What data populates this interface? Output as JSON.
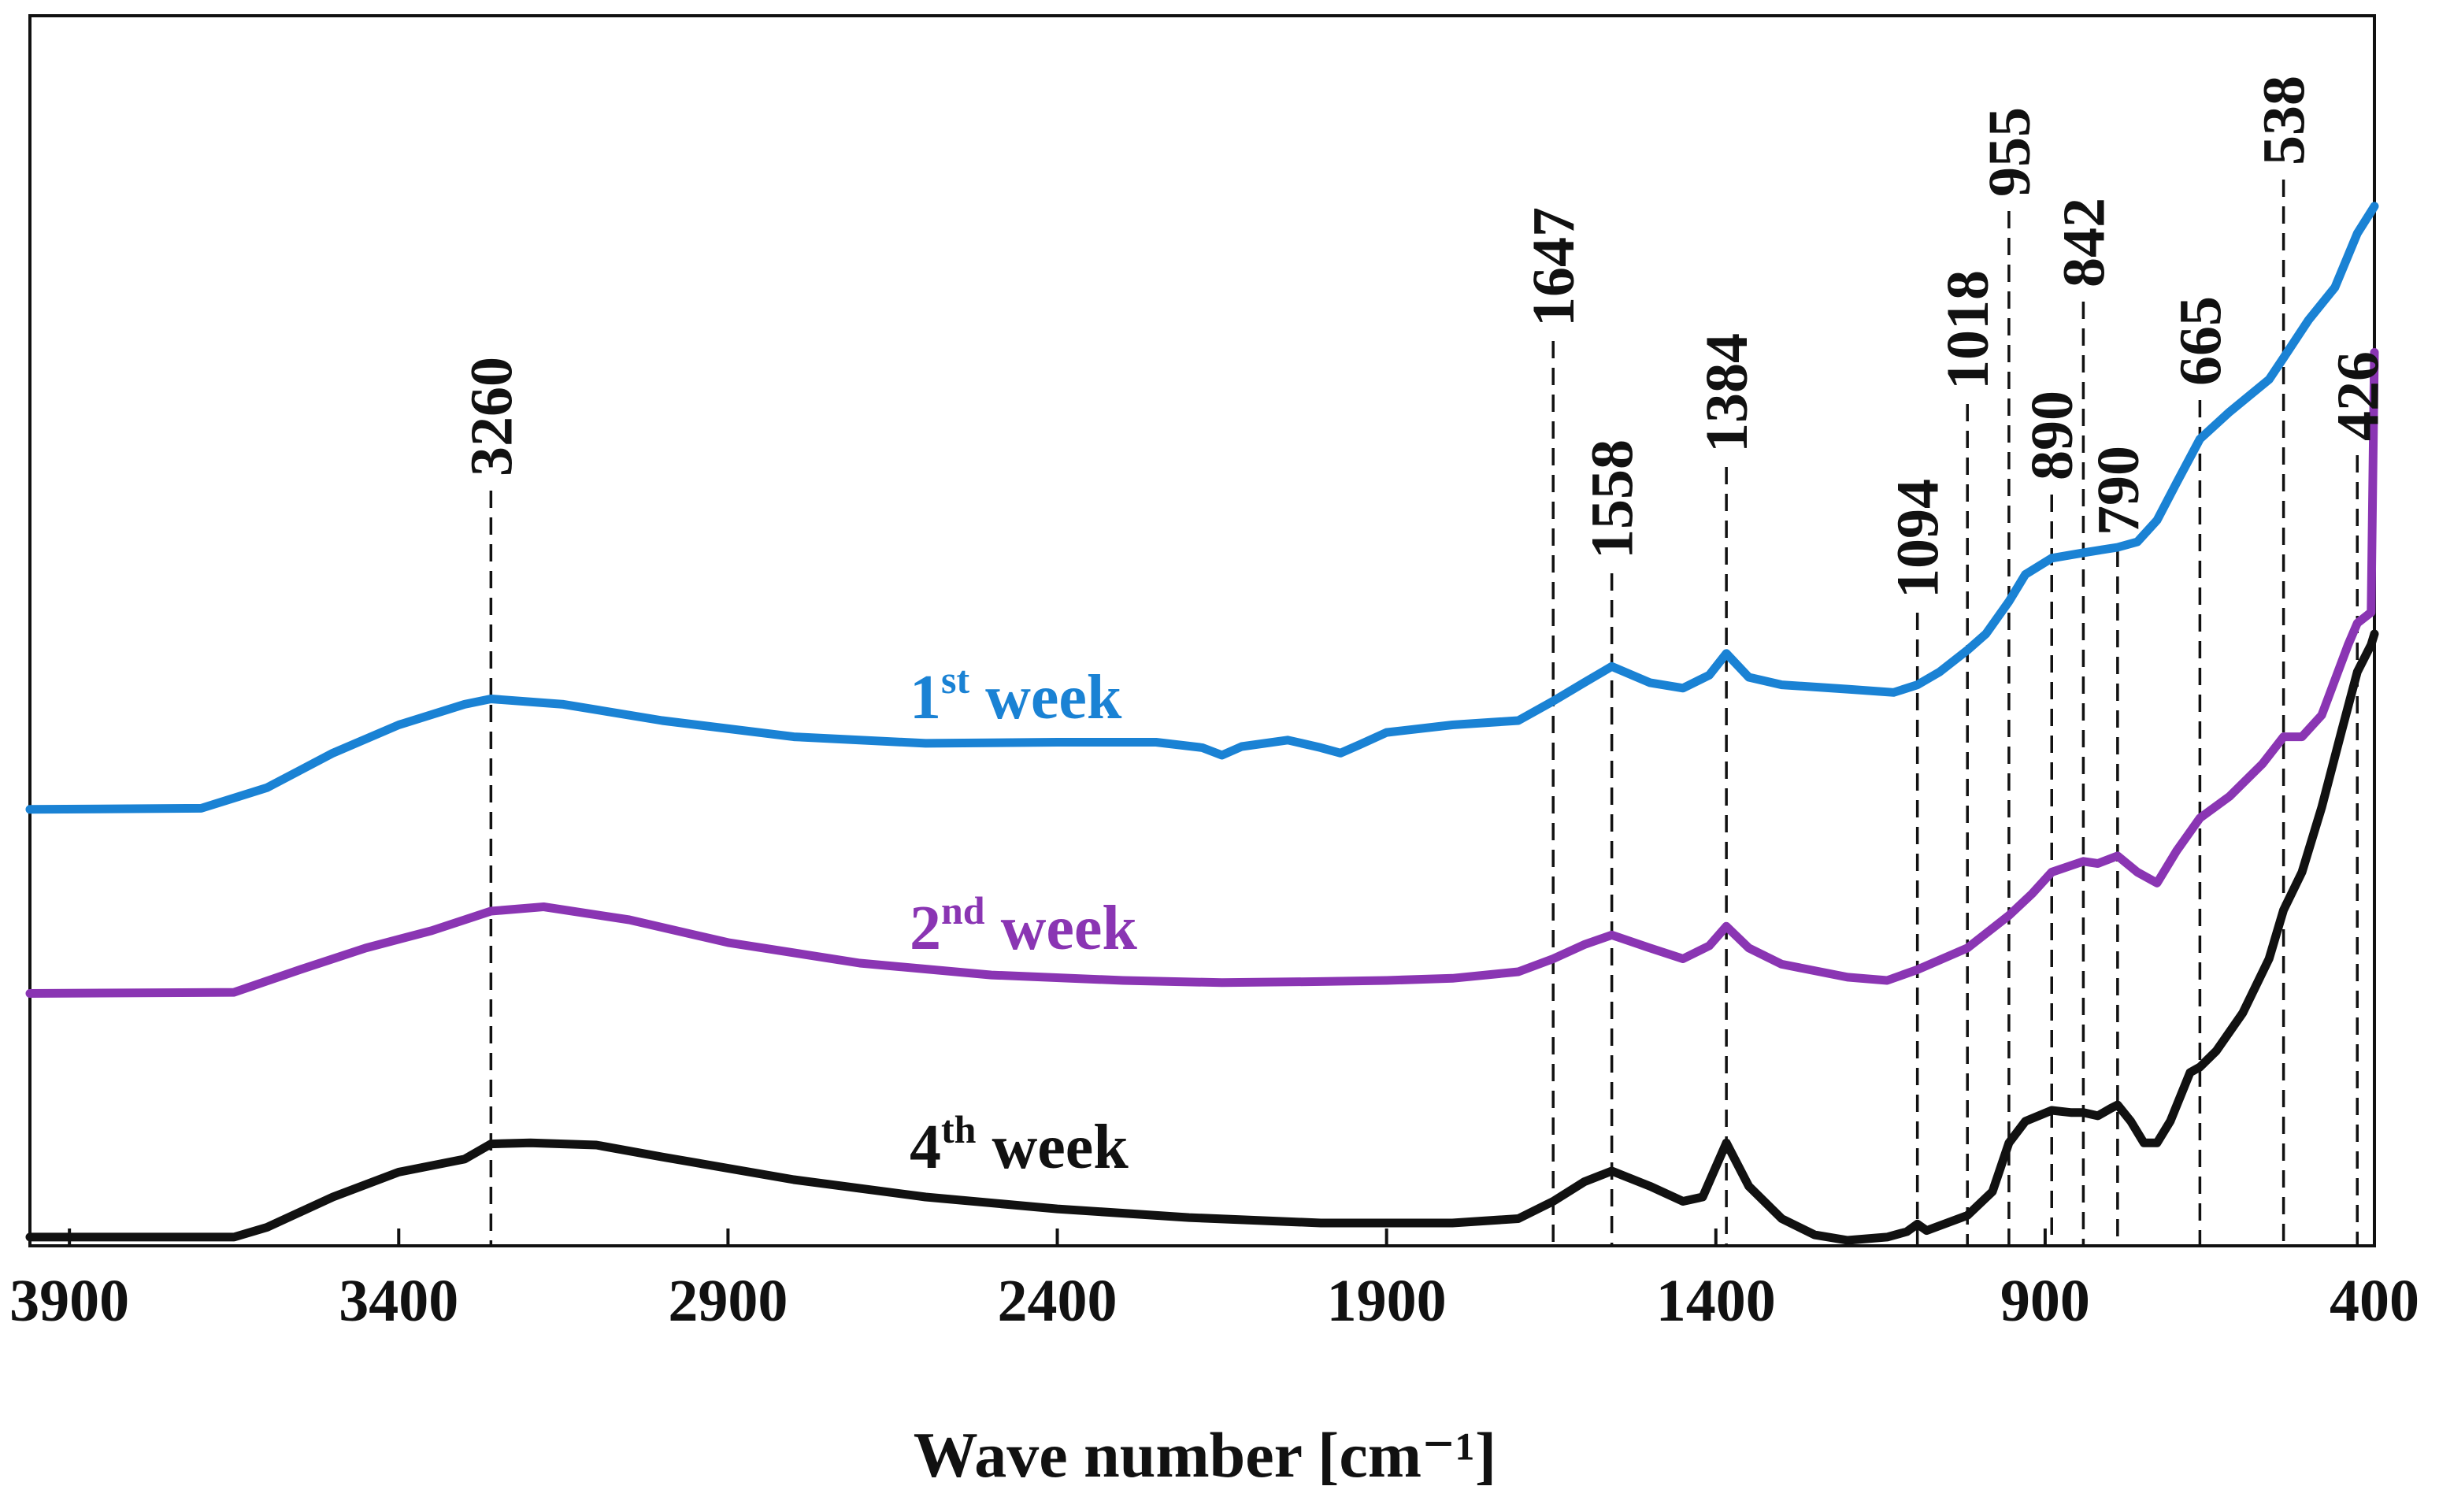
{
  "chart_data": {
    "type": "line",
    "title": "",
    "xlabel": "Wave number [cm⁻¹]",
    "ylabel": "",
    "xlim": [
      3960,
      400
    ],
    "ylim": [
      0,
      100
    ],
    "x_reversed": true,
    "grid": false,
    "xticks": [
      3900,
      3400,
      2900,
      2400,
      1900,
      1400,
      900,
      400
    ],
    "series": [
      {
        "name": "1st week",
        "label_main": "1",
        "label_sup": "st",
        "label_rest": " week",
        "color": "#1a82d4",
        "points": [
          [
            3960,
            39.8
          ],
          [
            3700,
            39.9
          ],
          [
            3600,
            41.8
          ],
          [
            3500,
            45.0
          ],
          [
            3400,
            47.6
          ],
          [
            3300,
            49.5
          ],
          [
            3260,
            50.0
          ],
          [
            3150,
            49.5
          ],
          [
            3000,
            48.0
          ],
          [
            2800,
            46.5
          ],
          [
            2600,
            45.9
          ],
          [
            2400,
            46.0
          ],
          [
            2250,
            46.0
          ],
          [
            2180,
            45.5
          ],
          [
            2150,
            44.8
          ],
          [
            2120,
            45.6
          ],
          [
            2050,
            46.2
          ],
          [
            2000,
            45.5
          ],
          [
            1970,
            45.0
          ],
          [
            1940,
            45.8
          ],
          [
            1900,
            46.9
          ],
          [
            1800,
            47.6
          ],
          [
            1700,
            48.0
          ],
          [
            1647,
            49.8
          ],
          [
            1600,
            51.5
          ],
          [
            1558,
            53.0
          ],
          [
            1500,
            51.5
          ],
          [
            1450,
            51.0
          ],
          [
            1410,
            52.2
          ],
          [
            1384,
            54.2
          ],
          [
            1350,
            52.0
          ],
          [
            1300,
            51.3
          ],
          [
            1200,
            50.9
          ],
          [
            1130,
            50.6
          ],
          [
            1094,
            51.3
          ],
          [
            1060,
            52.5
          ],
          [
            1018,
            54.5
          ],
          [
            990,
            56.0
          ],
          [
            955,
            59.0
          ],
          [
            930,
            61.5
          ],
          [
            890,
            63.0
          ],
          [
            842,
            63.5
          ],
          [
            790,
            64.0
          ],
          [
            760,
            64.5
          ],
          [
            730,
            66.5
          ],
          [
            700,
            70.0
          ],
          [
            665,
            74.0
          ],
          [
            620,
            76.5
          ],
          [
            560,
            79.5
          ],
          [
            538,
            81.5
          ],
          [
            500,
            85.0
          ],
          [
            460,
            88.0
          ],
          [
            426,
            93.0
          ],
          [
            400,
            95.5
          ]
        ]
      },
      {
        "name": "2nd week",
        "label_main": "2",
        "label_sup": "nd",
        "label_rest": " week",
        "color": "#8a35b3",
        "points": [
          [
            3960,
            22.8
          ],
          [
            3650,
            22.9
          ],
          [
            3550,
            25.0
          ],
          [
            3450,
            27.0
          ],
          [
            3350,
            28.6
          ],
          [
            3260,
            30.4
          ],
          [
            3180,
            30.8
          ],
          [
            3050,
            29.6
          ],
          [
            2900,
            27.5
          ],
          [
            2700,
            25.6
          ],
          [
            2500,
            24.5
          ],
          [
            2300,
            24.0
          ],
          [
            2150,
            23.8
          ],
          [
            2000,
            23.9
          ],
          [
            1900,
            24.0
          ],
          [
            1800,
            24.2
          ],
          [
            1700,
            24.8
          ],
          [
            1647,
            26.0
          ],
          [
            1600,
            27.3
          ],
          [
            1558,
            28.2
          ],
          [
            1500,
            27.0
          ],
          [
            1450,
            26.0
          ],
          [
            1410,
            27.2
          ],
          [
            1384,
            29.0
          ],
          [
            1350,
            27.0
          ],
          [
            1300,
            25.5
          ],
          [
            1200,
            24.3
          ],
          [
            1140,
            24.0
          ],
          [
            1094,
            25.0
          ],
          [
            1018,
            27.0
          ],
          [
            955,
            30.0
          ],
          [
            920,
            32.0
          ],
          [
            890,
            34.0
          ],
          [
            842,
            35.0
          ],
          [
            820,
            34.8
          ],
          [
            790,
            35.5
          ],
          [
            760,
            34.0
          ],
          [
            730,
            33.0
          ],
          [
            700,
            36.0
          ],
          [
            665,
            39.0
          ],
          [
            620,
            41.0
          ],
          [
            570,
            44.0
          ],
          [
            538,
            46.5
          ],
          [
            510,
            46.5
          ],
          [
            480,
            48.5
          ],
          [
            440,
            55.0
          ],
          [
            426,
            57.0
          ],
          [
            405,
            58.0
          ],
          [
            400,
            82.0
          ]
        ]
      },
      {
        "name": "4th week",
        "label_main": "4",
        "label_sup": "th",
        "label_rest": " week",
        "color": "#111111",
        "points": [
          [
            3960,
            0.3
          ],
          [
            3650,
            0.3
          ],
          [
            3600,
            1.2
          ],
          [
            3500,
            4.0
          ],
          [
            3400,
            6.3
          ],
          [
            3300,
            7.5
          ],
          [
            3260,
            8.9
          ],
          [
            3200,
            9.0
          ],
          [
            3100,
            8.8
          ],
          [
            3000,
            7.7
          ],
          [
            2800,
            5.6
          ],
          [
            2600,
            4.0
          ],
          [
            2400,
            2.9
          ],
          [
            2200,
            2.1
          ],
          [
            2000,
            1.6
          ],
          [
            1800,
            1.6
          ],
          [
            1700,
            2.0
          ],
          [
            1647,
            3.6
          ],
          [
            1600,
            5.4
          ],
          [
            1558,
            6.4
          ],
          [
            1500,
            5.0
          ],
          [
            1450,
            3.6
          ],
          [
            1420,
            4.0
          ],
          [
            1384,
            9.0
          ],
          [
            1350,
            5.0
          ],
          [
            1300,
            2.0
          ],
          [
            1250,
            0.5
          ],
          [
            1200,
            0.0
          ],
          [
            1140,
            0.3
          ],
          [
            1110,
            0.8
          ],
          [
            1094,
            1.5
          ],
          [
            1080,
            0.9
          ],
          [
            1018,
            2.3
          ],
          [
            980,
            4.5
          ],
          [
            955,
            9.0
          ],
          [
            930,
            11.0
          ],
          [
            890,
            12.0
          ],
          [
            860,
            11.8
          ],
          [
            842,
            11.8
          ],
          [
            820,
            11.5
          ],
          [
            800,
            12.2
          ],
          [
            790,
            12.5
          ],
          [
            770,
            11.0
          ],
          [
            750,
            9.0
          ],
          [
            730,
            9.0
          ],
          [
            710,
            11.0
          ],
          [
            680,
            15.5
          ],
          [
            665,
            16.0
          ],
          [
            640,
            17.5
          ],
          [
            600,
            21.0
          ],
          [
            560,
            26.0
          ],
          [
            538,
            30.5
          ],
          [
            510,
            34.0
          ],
          [
            480,
            40.0
          ],
          [
            450,
            47.0
          ],
          [
            426,
            52.5
          ],
          [
            405,
            55.0
          ],
          [
            400,
            56.0
          ]
        ]
      }
    ],
    "peak_markers": [
      {
        "x": 3260,
        "label": "3260"
      },
      {
        "x": 1647,
        "label": "1647"
      },
      {
        "x": 1558,
        "label": "1558"
      },
      {
        "x": 1384,
        "label": "1384"
      },
      {
        "x": 1094,
        "label": "1094"
      },
      {
        "x": 1018,
        "label": "1018"
      },
      {
        "x": 955,
        "label": "955"
      },
      {
        "x": 890,
        "label": "890"
      },
      {
        "x": 842,
        "label": "842"
      },
      {
        "x": 790,
        "label": "790"
      },
      {
        "x": 665,
        "label": "665"
      },
      {
        "x": 538,
        "label": "538"
      },
      {
        "x": 426,
        "label": "426"
      }
    ]
  }
}
